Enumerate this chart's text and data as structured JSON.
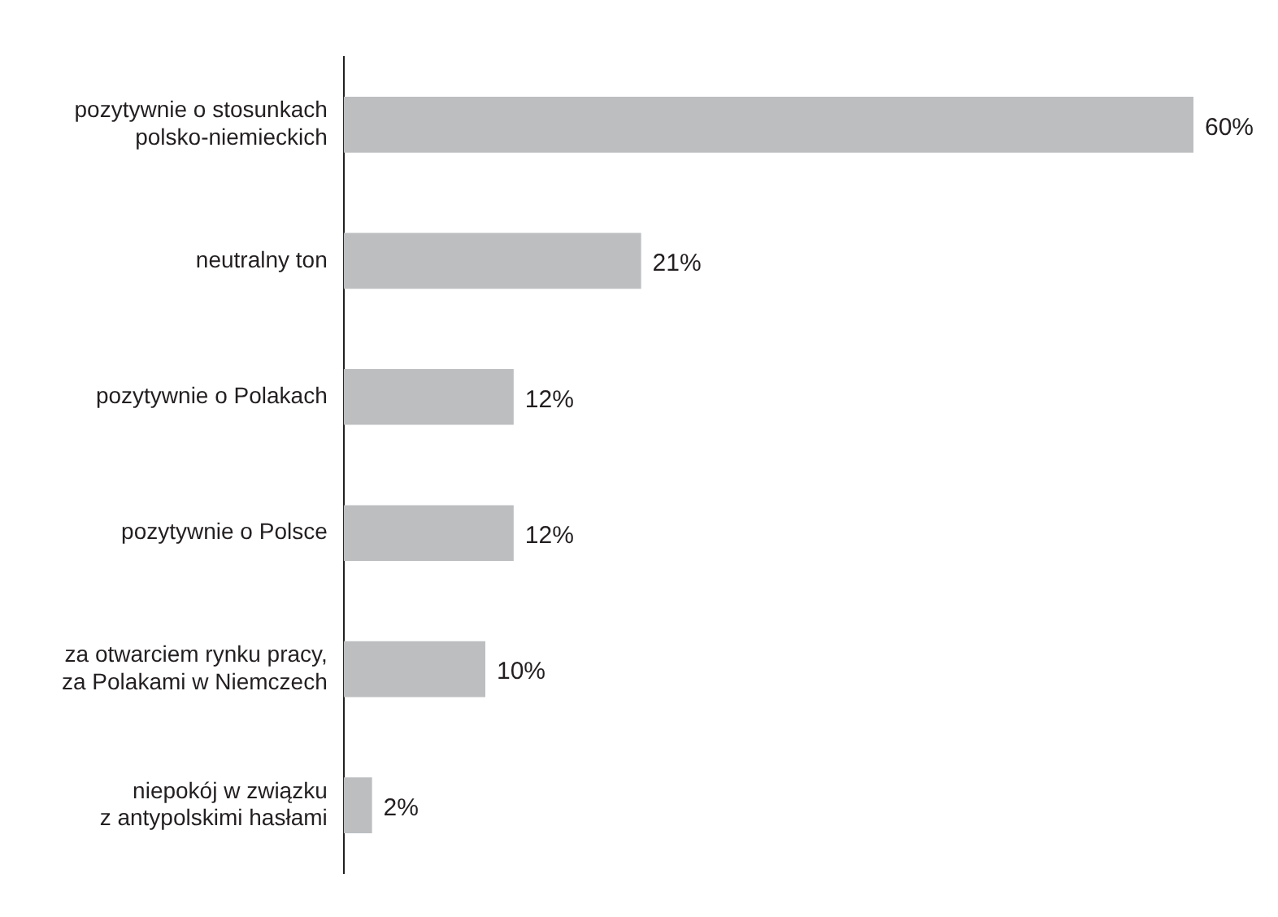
{
  "chart_data": {
    "type": "bar",
    "orientation": "horizontal",
    "categories": [
      "pozytywnie o stosunkach\npolsko-niemieckich",
      "neutralny ton",
      "pozytywnie o Polakach",
      "pozytywnie o Polsce",
      "za otwarciem rynku pracy,\nza Polakami w Niemczech",
      "niepokój w związku\nz antypolskimi hasłami"
    ],
    "values": [
      60,
      21,
      12,
      12,
      10,
      2
    ],
    "value_labels": [
      "60%",
      "21%",
      "12%",
      "12%",
      "10%",
      "2%"
    ],
    "color": "#bcbec0",
    "tick_labels": "y",
    "grid": false,
    "legend": false
  }
}
